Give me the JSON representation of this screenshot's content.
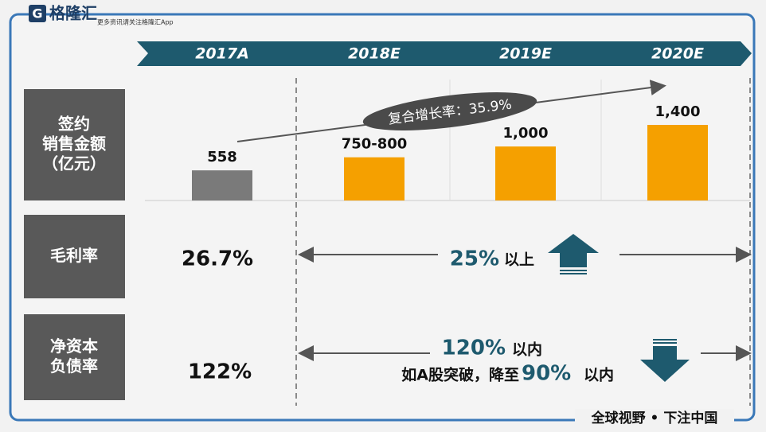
{
  "header": {
    "logo": "格隆汇",
    "logo_letter": "G",
    "tagline": "更多资讯请关注格隆汇App"
  },
  "chart_data": {
    "type": "bar",
    "categories": [
      "2017A",
      "2018E",
      "2019E",
      "2020E"
    ],
    "values": [
      558,
      800,
      1000,
      1400
    ],
    "value_labels": [
      "558",
      "750-800",
      "1,000",
      "1,400"
    ],
    "colors": [
      "#7a7a7a",
      "#f5a000",
      "#f5a000",
      "#f5a000"
    ]
  },
  "cagr": "复合增长率：35.9%",
  "rows": [
    {
      "label_lines": [
        "签约",
        "销售金额",
        "（亿元）"
      ]
    },
    {
      "label_lines": [
        "毛利率"
      ],
      "actual": "26.7%",
      "target": "25%",
      "target_note": "以上"
    },
    {
      "label_lines": [
        "净资本",
        "负债率"
      ],
      "actual": "122%",
      "target": "120%",
      "target_note": "以内",
      "condition": "如A股突破，降至",
      "condition_target": "90%",
      "condition_note": "以内"
    }
  ],
  "footer": "全球视野 • 下注中国"
}
